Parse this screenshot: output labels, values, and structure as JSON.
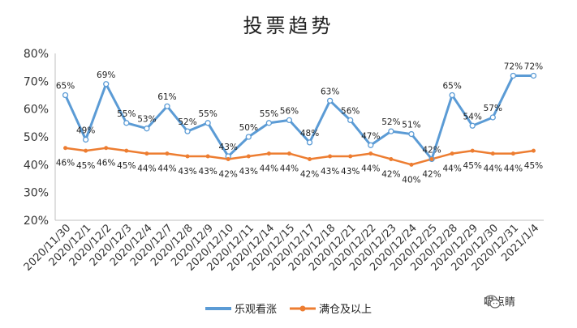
{
  "chart_data": {
    "type": "line",
    "title": "投票趋势",
    "xlabel": "",
    "ylabel": "",
    "ylim": [
      20,
      80
    ],
    "ytick_labels": [
      "20%",
      "30%",
      "40%",
      "50%",
      "60%",
      "70%",
      "80%"
    ],
    "ytick_values": [
      20,
      30,
      40,
      50,
      60,
      70,
      80
    ],
    "grid": false,
    "legend_position": "bottom",
    "categories": [
      "2020/11/30",
      "2020/12/1",
      "2020/12/2",
      "2020/12/3",
      "2020/12/4",
      "2020/12/7",
      "2020/12/8",
      "2020/12/9",
      "2020/12/10",
      "2020/12/11",
      "2020/12/14",
      "2020/12/15",
      "2020/12/17",
      "2020/12/18",
      "2020/12/21",
      "2020/12/22",
      "2020/12/23",
      "2020/12/24",
      "2020/12/25",
      "2020/12/28",
      "2020/12/29",
      "2020/12/30",
      "2020/12/31",
      "2021/1/4"
    ],
    "series": [
      {
        "name": "乐观看涨",
        "color": "#5B9BD5",
        "values": [
          65,
          49,
          69,
          55,
          53,
          61,
          52,
          55,
          43,
          50,
          55,
          56,
          48,
          63,
          56,
          47,
          52,
          51,
          42,
          65,
          54,
          57,
          72,
          72
        ],
        "labels": [
          "65%",
          "49%",
          "69%",
          "55%",
          "53%",
          "61%",
          "52%",
          "55%",
          "43%",
          "50%",
          "55%",
          "56%",
          "48%",
          "63%",
          "56%",
          "47%",
          "52%",
          "51%",
          "42%",
          "65%",
          "54%",
          "57%",
          "72%",
          "72%"
        ]
      },
      {
        "name": "满仓及以上",
        "color": "#ED7D31",
        "values": [
          46,
          45,
          46,
          45,
          44,
          44,
          43,
          43,
          42,
          43,
          44,
          44,
          42,
          43,
          43,
          44,
          42,
          40,
          42,
          44,
          45,
          44,
          44,
          45
        ],
        "labels": [
          "46%",
          "45%",
          "46%",
          "45%",
          "44%",
          "44%",
          "43%",
          "43%",
          "42%",
          "43%",
          "44%",
          "44%",
          "42%",
          "43%",
          "43%",
          "44%",
          "42%",
          "40%",
          "42%",
          "44%",
          "45%",
          "44%",
          "44%",
          "45%"
        ]
      }
    ]
  },
  "watermark": {
    "icon": "wechat-icon",
    "text": "喵点睛"
  }
}
